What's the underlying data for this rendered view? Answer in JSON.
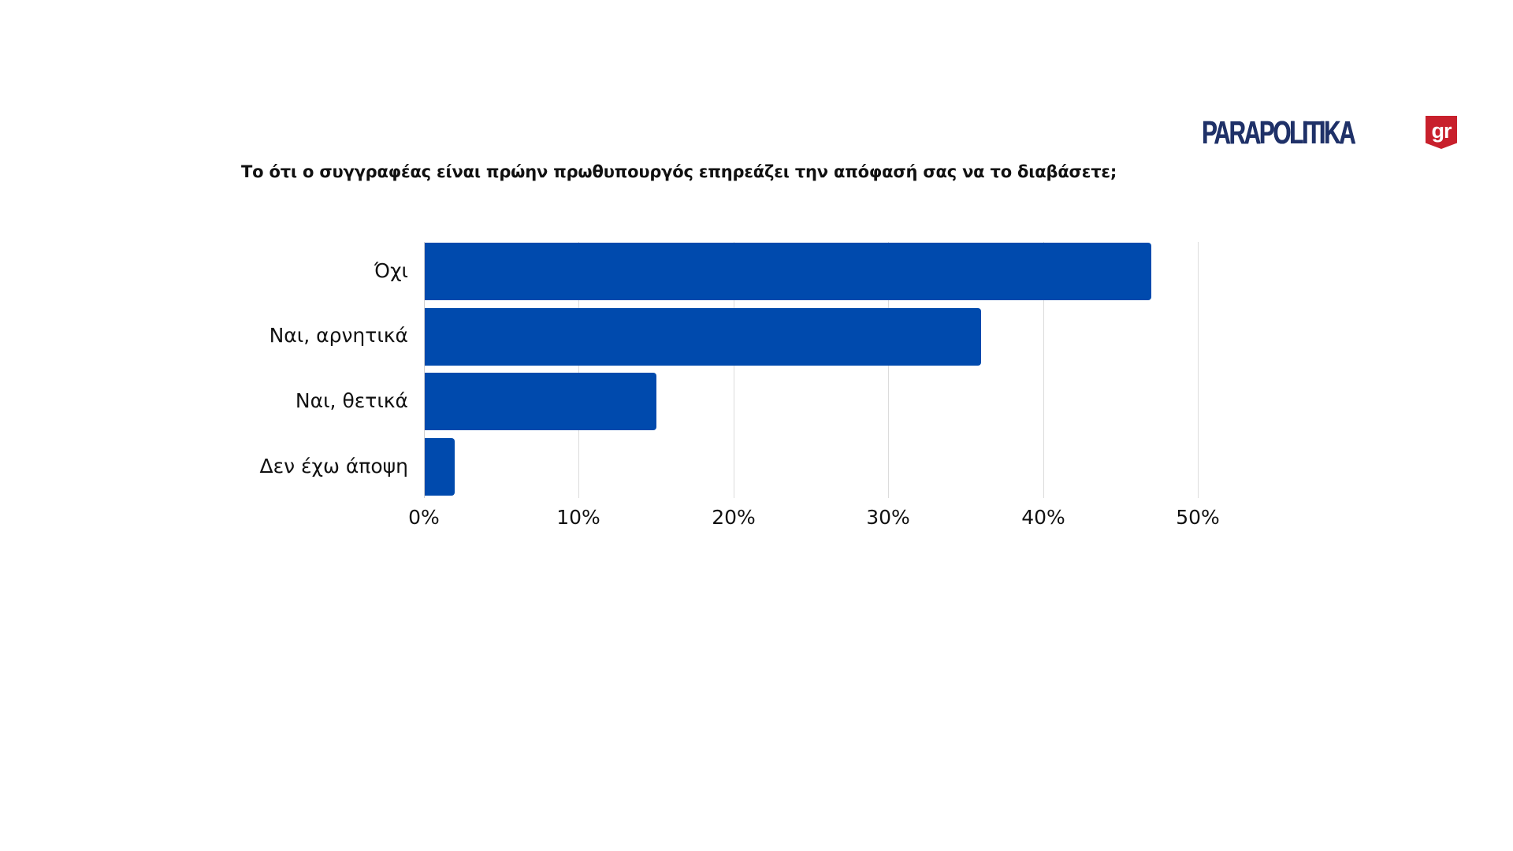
{
  "brand": {
    "logo_text": "PARAPOLITIKA",
    "logo_badge": "gr",
    "logo_color": "#1f3168",
    "badge_color": "#c8202c"
  },
  "chart_data": {
    "type": "bar",
    "orientation": "horizontal",
    "title": "Το ότι ο συγγραφέας είναι πρώην πρωθυπουργός επηρεάζει την απόφασή σας να το διαβάσετε;",
    "categories": [
      "Όχι",
      "Ναι, αρνητικά",
      "Ναι, θετικά",
      "Δεν έχω άποψη"
    ],
    "values": [
      47,
      36,
      15,
      2
    ],
    "unit": "%",
    "xlabel": "",
    "ylabel": "",
    "xlim": [
      0,
      50
    ],
    "x_ticks": [
      "0%",
      "10%",
      "20%",
      "30%",
      "40%",
      "50%"
    ],
    "grid": true,
    "legend": "none",
    "bar_color": "#004aad"
  }
}
